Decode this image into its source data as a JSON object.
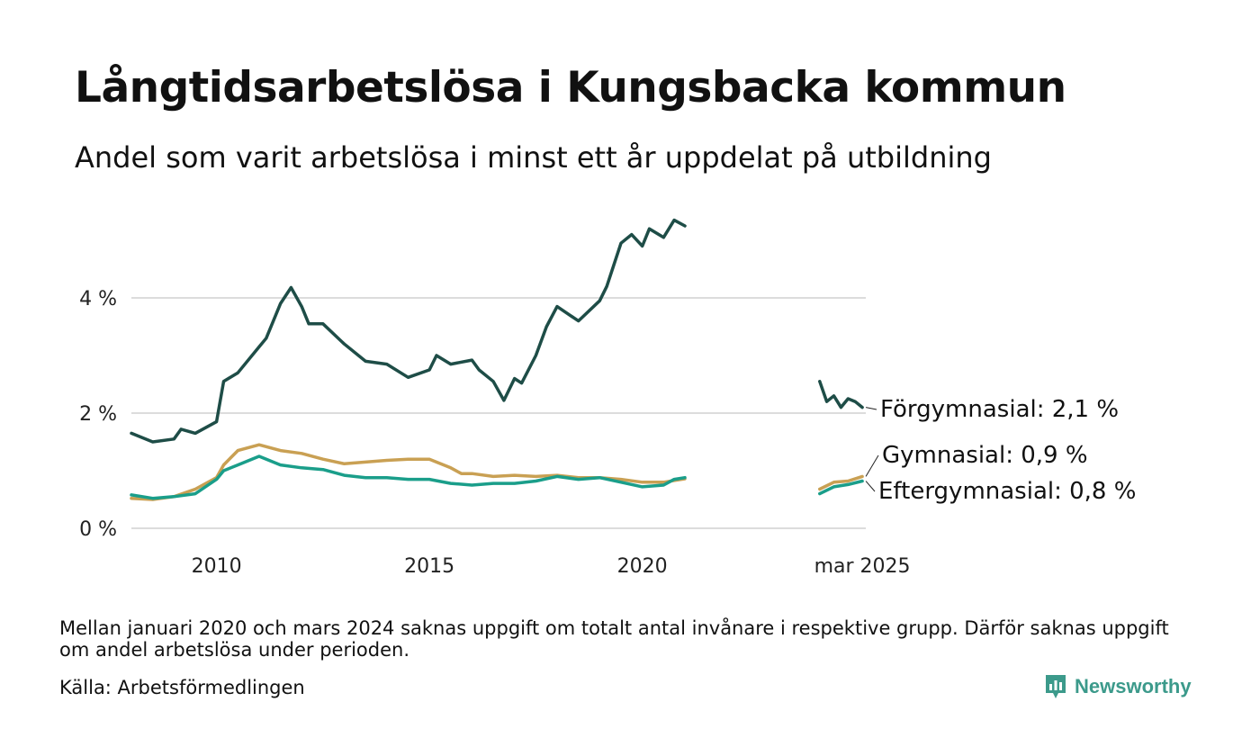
{
  "title": "Långtidsarbetslösa i Kungsbacka kommun",
  "subtitle": "Andel som varit arbetslösa i minst ett år uppdelat på utbildning",
  "footnote": "Mellan januari 2020 och mars 2024 saknas uppgift om totalt antal invånare i respektive grupp. Därför saknas uppgift om andel arbetslösa under perioden.",
  "source": "Källa: Arbetsförmedlingen",
  "brand": {
    "name": "Newsworthy",
    "icon": "newsworthy-logo-icon",
    "color": "#3c9a8b"
  },
  "chart_data": {
    "type": "line",
    "ylim": [
      0,
      5.6
    ],
    "grid": true,
    "y_ticks": [
      {
        "value": 0,
        "label": "0 %"
      },
      {
        "value": 2,
        "label": "2 %"
      },
      {
        "value": 4,
        "label": "4 %"
      }
    ],
    "x_ticks": [
      {
        "value": "2010",
        "label": "2010"
      },
      {
        "value": "2015",
        "label": "2015"
      },
      {
        "value": "2020",
        "label": "2020"
      },
      {
        "value": "2025-03",
        "label": "mar 2025"
      }
    ],
    "series": [
      {
        "name": "Förgymnasial",
        "end_label": "Förgymnasial: 2,1 %",
        "color": "#1e4d47",
        "segments": [
          [
            [
              "2008-01",
              1.65
            ],
            [
              "2008-07",
              1.5
            ],
            [
              "2009-01",
              1.55
            ],
            [
              "2009-03",
              1.72
            ],
            [
              "2009-07",
              1.65
            ],
            [
              "2010-01",
              1.85
            ],
            [
              "2010-03",
              2.55
            ],
            [
              "2010-07",
              2.7
            ],
            [
              "2011-01",
              3.15
            ],
            [
              "2011-03",
              3.3
            ],
            [
              "2011-07",
              3.9
            ],
            [
              "2011-10",
              4.18
            ],
            [
              "2012-01",
              3.85
            ],
            [
              "2012-03",
              3.55
            ],
            [
              "2012-07",
              3.55
            ],
            [
              "2013-01",
              3.2
            ],
            [
              "2013-07",
              2.9
            ],
            [
              "2014-01",
              2.85
            ],
            [
              "2014-07",
              2.62
            ],
            [
              "2015-01",
              2.75
            ],
            [
              "2015-03",
              3.0
            ],
            [
              "2015-07",
              2.85
            ],
            [
              "2016-01",
              2.92
            ],
            [
              "2016-03",
              2.75
            ],
            [
              "2016-07",
              2.55
            ],
            [
              "2016-10",
              2.22
            ],
            [
              "2017-01",
              2.6
            ],
            [
              "2017-03",
              2.52
            ],
            [
              "2017-07",
              3.0
            ],
            [
              "2017-10",
              3.5
            ],
            [
              "2018-01",
              3.85
            ],
            [
              "2018-07",
              3.6
            ],
            [
              "2019-01",
              3.95
            ],
            [
              "2019-03",
              4.2
            ],
            [
              "2019-07",
              4.95
            ],
            [
              "2019-10",
              5.1
            ],
            [
              "2020-01",
              4.9
            ],
            [
              "2020-03",
              5.2
            ],
            [
              "2020-07",
              5.05
            ],
            [
              "2020-10",
              5.35
            ],
            [
              "2021-01",
              5.25
            ]
          ],
          [
            [
              "2024-03",
              2.55
            ],
            [
              "2024-05",
              2.2
            ],
            [
              "2024-07",
              2.3
            ],
            [
              "2024-09",
              2.1
            ],
            [
              "2024-11",
              2.25
            ],
            [
              "2025-01",
              2.2
            ],
            [
              "2025-03",
              2.1
            ]
          ]
        ]
      },
      {
        "name": "Gymnasial",
        "end_label": "Gymnasial: 0,9 %",
        "color": "#c9a053",
        "segments": [
          [
            [
              "2008-01",
              0.52
            ],
            [
              "2008-07",
              0.5
            ],
            [
              "2009-01",
              0.55
            ],
            [
              "2009-07",
              0.68
            ],
            [
              "2010-01",
              0.88
            ],
            [
              "2010-03",
              1.1
            ],
            [
              "2010-07",
              1.35
            ],
            [
              "2011-01",
              1.45
            ],
            [
              "2011-07",
              1.35
            ],
            [
              "2012-01",
              1.3
            ],
            [
              "2012-07",
              1.2
            ],
            [
              "2013-01",
              1.12
            ],
            [
              "2013-07",
              1.15
            ],
            [
              "2014-01",
              1.18
            ],
            [
              "2014-07",
              1.2
            ],
            [
              "2015-01",
              1.2
            ],
            [
              "2015-07",
              1.05
            ],
            [
              "2015-10",
              0.95
            ],
            [
              "2016-01",
              0.95
            ],
            [
              "2016-07",
              0.9
            ],
            [
              "2017-01",
              0.92
            ],
            [
              "2017-07",
              0.9
            ],
            [
              "2018-01",
              0.92
            ],
            [
              "2018-07",
              0.88
            ],
            [
              "2019-01",
              0.88
            ],
            [
              "2019-07",
              0.85
            ],
            [
              "2020-01",
              0.8
            ],
            [
              "2020-07",
              0.8
            ],
            [
              "2021-01",
              0.86
            ]
          ],
          [
            [
              "2024-03",
              0.68
            ],
            [
              "2024-07",
              0.8
            ],
            [
              "2024-11",
              0.82
            ],
            [
              "2025-03",
              0.9
            ]
          ]
        ]
      },
      {
        "name": "Eftergymnasial",
        "end_label": "Eftergymnasial: 0,8 %",
        "color": "#1a9e8a",
        "segments": [
          [
            [
              "2008-01",
              0.58
            ],
            [
              "2008-07",
              0.52
            ],
            [
              "2009-01",
              0.55
            ],
            [
              "2009-07",
              0.6
            ],
            [
              "2010-01",
              0.85
            ],
            [
              "2010-03",
              1.0
            ],
            [
              "2010-07",
              1.1
            ],
            [
              "2011-01",
              1.25
            ],
            [
              "2011-07",
              1.1
            ],
            [
              "2012-01",
              1.05
            ],
            [
              "2012-07",
              1.02
            ],
            [
              "2013-01",
              0.92
            ],
            [
              "2013-07",
              0.88
            ],
            [
              "2014-01",
              0.88
            ],
            [
              "2014-07",
              0.85
            ],
            [
              "2015-01",
              0.85
            ],
            [
              "2015-07",
              0.78
            ],
            [
              "2016-01",
              0.75
            ],
            [
              "2016-07",
              0.78
            ],
            [
              "2017-01",
              0.78
            ],
            [
              "2017-07",
              0.82
            ],
            [
              "2018-01",
              0.9
            ],
            [
              "2018-07",
              0.85
            ],
            [
              "2019-01",
              0.88
            ],
            [
              "2019-07",
              0.8
            ],
            [
              "2020-01",
              0.72
            ],
            [
              "2020-07",
              0.75
            ],
            [
              "2020-10",
              0.85
            ],
            [
              "2021-01",
              0.88
            ]
          ],
          [
            [
              "2024-03",
              0.6
            ],
            [
              "2024-07",
              0.72
            ],
            [
              "2024-11",
              0.76
            ],
            [
              "2025-03",
              0.82
            ]
          ]
        ]
      }
    ]
  }
}
